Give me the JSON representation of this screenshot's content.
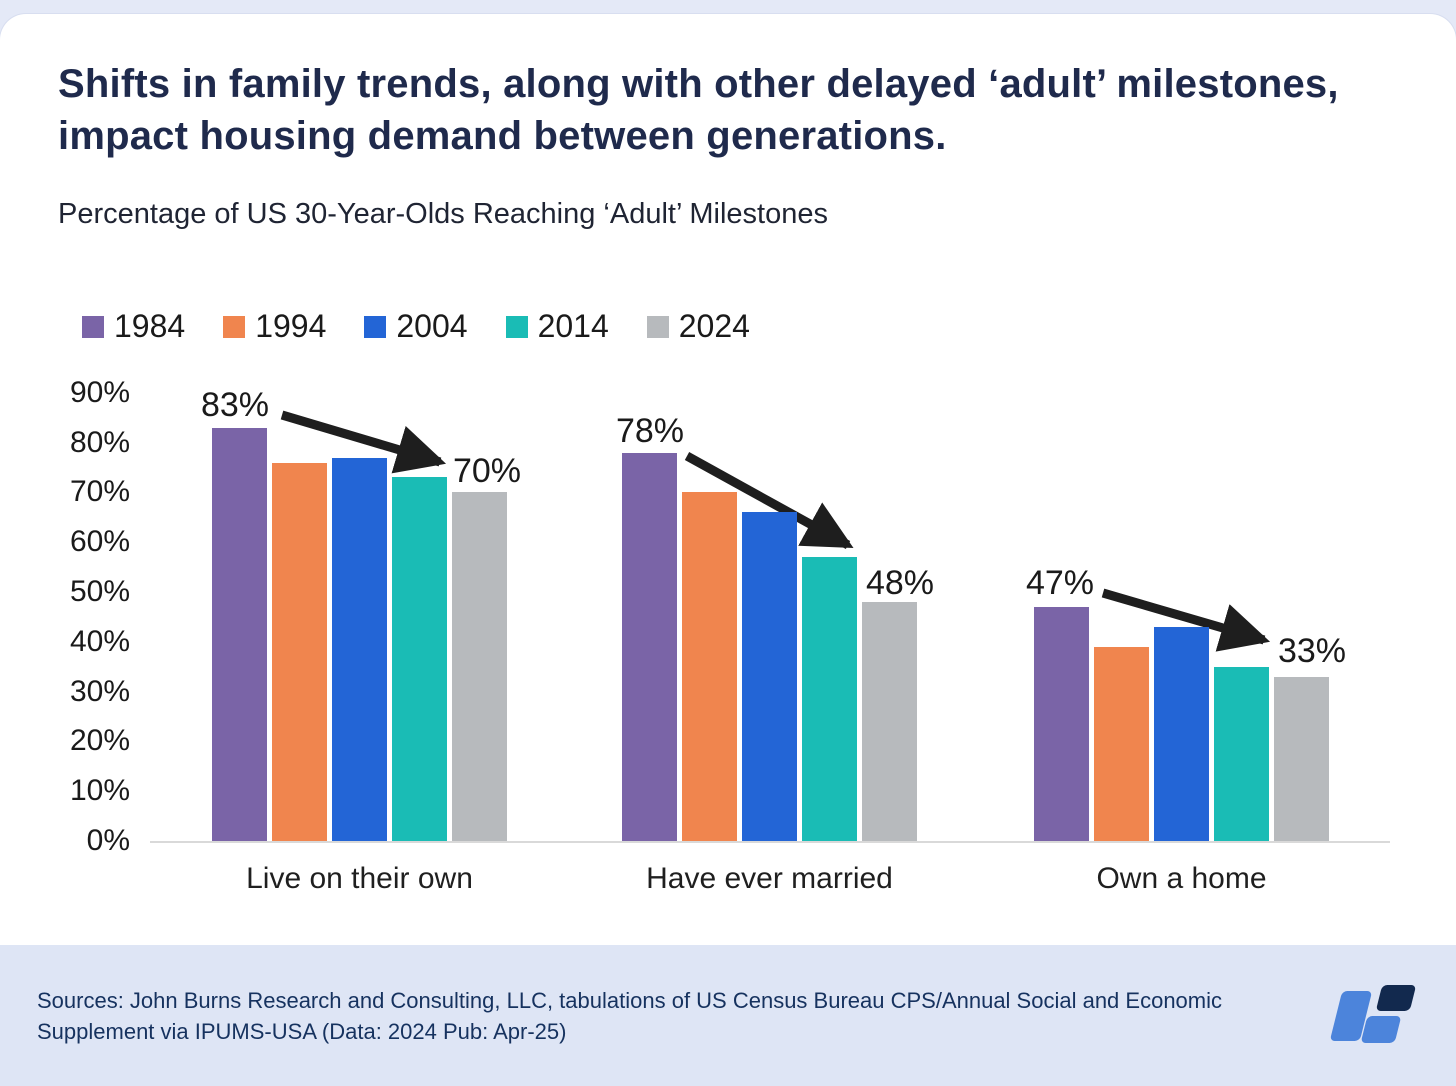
{
  "header": {
    "title": "Shifts in family trends, along with other delayed ‘adult’ milestones, impact housing demand between generations."
  },
  "chart_data": {
    "type": "bar",
    "title": "Percentage of US 30-Year-Olds Reaching ‘Adult’ Milestones",
    "categories": [
      "Live on their own",
      "Have ever married",
      "Own a home"
    ],
    "series": [
      {
        "name": "1984",
        "color": "#7a64a7",
        "values": [
          83,
          78,
          47
        ]
      },
      {
        "name": "1994",
        "color": "#f0854e",
        "values": [
          76,
          70,
          39
        ]
      },
      {
        "name": "2004",
        "color": "#2365d6",
        "values": [
          77,
          66,
          43
        ]
      },
      {
        "name": "2014",
        "color": "#1abcb5",
        "values": [
          73,
          57,
          35
        ]
      },
      {
        "name": "2024",
        "color": "#b7babd",
        "values": [
          70,
          48,
          33
        ]
      }
    ],
    "ylim": [
      0,
      90
    ],
    "yticks": [
      "0%",
      "10%",
      "20%",
      "30%",
      "40%",
      "50%",
      "60%",
      "70%",
      "80%",
      "90%"
    ],
    "grid": false,
    "legend_position": "top-left",
    "annotations": [
      {
        "text": "83%",
        "meaning": "1984 value, Live on their own"
      },
      {
        "text": "70%",
        "meaning": "2024 value, Live on their own"
      },
      {
        "text": "78%",
        "meaning": "1984 value, Have ever married"
      },
      {
        "text": "48%",
        "meaning": "2024 value, Have ever married"
      },
      {
        "text": "47%",
        "meaning": "1984 value, Own a home"
      },
      {
        "text": "33%",
        "meaning": "2024 value, Own a home"
      }
    ],
    "arrow_color": "#1e1e1e"
  },
  "footer": {
    "source": "Sources: John Burns Research and Consulting, LLC, tabulations of US Census Bureau CPS/Annual Social and Economic Supplement via IPUMS-USA (Data: 2024 Pub: Apr-25)",
    "logo_colors": {
      "light_blue": "#4c84db",
      "navy": "#12294e"
    }
  },
  "colors": {
    "background": "#e4e9f7",
    "card": "#ffffff",
    "footer_band": "#dee5f5",
    "title_text": "#1f2a4c",
    "axis_text": "#1a1a1a",
    "source_text": "#16325f"
  }
}
